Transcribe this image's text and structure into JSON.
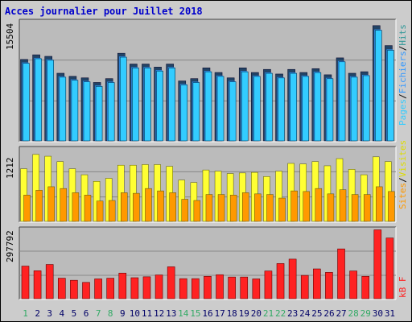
{
  "title": "Acces journalier pour Juillet 2018",
  "colors": {
    "background": "#cccccc",
    "panel": "#bbbbbb",
    "title": "#0000cc",
    "pages": "#33ccff",
    "fichiers": "#3399ff",
    "hits": "#339999",
    "visites": "#ffff33",
    "sites": "#ff9900",
    "kb": "#ff2222",
    "weekend": "#33aa66",
    "weekday": "#000066"
  },
  "legend": {
    "pages": "Pages",
    "slash1": "/",
    "fichiers": "Fichiers",
    "slash2": "/",
    "hits": "Hits",
    "sites": "Sites",
    "slash3": "/",
    "visites": "Visites",
    "kb": "kB F"
  },
  "chart_data": [
    {
      "type": "bar",
      "panel": "hits",
      "ymax_label": "15504",
      "ylim": [
        0,
        15504
      ],
      "categories": [
        "1",
        "2",
        "3",
        "4",
        "5",
        "6",
        "7",
        "8",
        "9",
        "10",
        "11",
        "12",
        "13",
        "14",
        "15",
        "16",
        "17",
        "18",
        "19",
        "20",
        "21",
        "22",
        "23",
        "24",
        "25",
        "26",
        "27",
        "28",
        "29",
        "30",
        "31"
      ],
      "weekend_days": [
        1,
        7,
        8,
        14,
        15,
        21,
        22,
        28,
        29
      ],
      "series": [
        {
          "name": "Hits",
          "values": [
            10600,
            11200,
            11000,
            8800,
            8400,
            8200,
            7600,
            8100,
            11400,
            10000,
            10000,
            9600,
            10000,
            7800,
            8100,
            9500,
            8900,
            8200,
            9500,
            8900,
            9300,
            8700,
            9300,
            8900,
            9400,
            8600,
            10800,
            8800,
            9000,
            15000,
            12400
          ]
        },
        {
          "name": "Fichiers",
          "values": [
            10300,
            10900,
            10700,
            8500,
            8100,
            7900,
            7300,
            7800,
            11100,
            9700,
            9700,
            9300,
            9700,
            7500,
            7800,
            9200,
            8600,
            7900,
            9200,
            8600,
            9000,
            8400,
            9000,
            8600,
            9100,
            8300,
            10500,
            8500,
            8700,
            14600,
            12000
          ]
        },
        {
          "name": "Pages",
          "values": [
            10300,
            10900,
            10700,
            8500,
            8100,
            7900,
            7300,
            7800,
            11100,
            9700,
            9700,
            9300,
            9700,
            7500,
            7800,
            9200,
            8600,
            7900,
            9200,
            8600,
            9000,
            8400,
            9000,
            8600,
            9100,
            8300,
            10500,
            8500,
            8700,
            14600,
            12000
          ]
        }
      ]
    },
    {
      "type": "bar",
      "panel": "visits",
      "ymax_label": "1212",
      "ylim": [
        0,
        1212
      ],
      "categories": [
        "1",
        "2",
        "3",
        "4",
        "5",
        "6",
        "7",
        "8",
        "9",
        "10",
        "11",
        "12",
        "13",
        "14",
        "15",
        "16",
        "17",
        "18",
        "19",
        "20",
        "21",
        "22",
        "23",
        "24",
        "25",
        "26",
        "27",
        "28",
        "29",
        "30",
        "31"
      ],
      "series": [
        {
          "name": "Visites",
          "values": [
            880,
            1120,
            1090,
            1000,
            880,
            780,
            670,
            720,
            940,
            940,
            950,
            950,
            920,
            690,
            650,
            860,
            840,
            800,
            810,
            820,
            750,
            840,
            970,
            960,
            1000,
            930,
            1050,
            870,
            780,
            1080,
            1000
          ]
        },
        {
          "name": "Sites",
          "values": [
            440,
            520,
            580,
            550,
            480,
            440,
            340,
            350,
            480,
            470,
            550,
            510,
            480,
            370,
            350,
            450,
            450,
            440,
            480,
            460,
            450,
            390,
            510,
            500,
            550,
            460,
            530,
            450,
            450,
            580,
            500
          ]
        }
      ]
    },
    {
      "type": "bar",
      "panel": "kb",
      "ymax_label": "297792",
      "ylim": [
        0,
        297792
      ],
      "categories": [
        "1",
        "2",
        "3",
        "4",
        "5",
        "6",
        "7",
        "8",
        "9",
        "10",
        "11",
        "12",
        "13",
        "14",
        "15",
        "16",
        "17",
        "18",
        "19",
        "20",
        "21",
        "22",
        "23",
        "24",
        "25",
        "26",
        "27",
        "28",
        "29",
        "30",
        "31"
      ],
      "series": [
        {
          "name": "kB F",
          "values": [
            140000,
            120000,
            147000,
            88000,
            79000,
            70000,
            85000,
            88000,
            110000,
            90000,
            94000,
            102000,
            137000,
            86000,
            86000,
            96000,
            103000,
            93000,
            93000,
            85000,
            119000,
            151000,
            170000,
            100000,
            128000,
            113000,
            214000,
            119000,
            96000,
            296000,
            261000
          ]
        }
      ]
    }
  ]
}
